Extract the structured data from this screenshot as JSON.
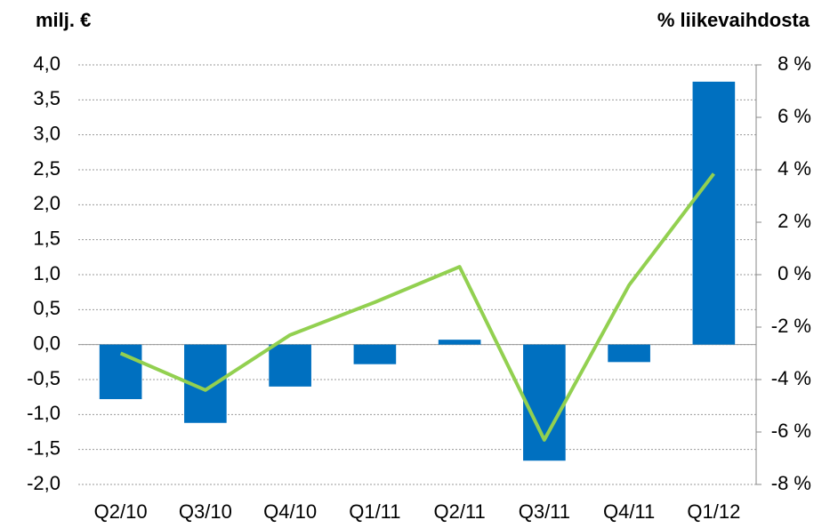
{
  "chart_data": {
    "type": "bar-line",
    "y_label": "milj. €",
    "y2_label": "% liikevaihdosta",
    "categories": [
      "Q2/10",
      "Q3/10",
      "Q4/10",
      "Q1/11",
      "Q2/11",
      "Q3/11",
      "Q4/11",
      "Q1/12"
    ],
    "series": [
      {
        "type": "bar",
        "color": "#0070c0",
        "values": [
          -0.78,
          -1.12,
          -0.6,
          -0.28,
          0.07,
          -1.66,
          -0.25,
          3.76
        ]
      },
      {
        "type": "line",
        "axis": "y2",
        "color": "#92d050",
        "values": [
          -3.0,
          -4.4,
          -2.3,
          -1.05,
          0.3,
          -6.3,
          -0.4,
          3.85
        ]
      }
    ],
    "ylim": [
      -2.0,
      4.0
    ],
    "yticks": [
      {
        "value": -2.0,
        "label": "-2,0"
      },
      {
        "value": -1.5,
        "label": "-1,5"
      },
      {
        "value": -1.0,
        "label": "-1,0"
      },
      {
        "value": -0.5,
        "label": "-0,5"
      },
      {
        "value": 0.0,
        "label": "0,0"
      },
      {
        "value": 0.5,
        "label": "0,5"
      },
      {
        "value": 1.0,
        "label": "1,0"
      },
      {
        "value": 1.5,
        "label": "1,5"
      },
      {
        "value": 2.0,
        "label": "2,0"
      },
      {
        "value": 2.5,
        "label": "2,5"
      },
      {
        "value": 3.0,
        "label": "3,0"
      },
      {
        "value": 3.5,
        "label": "3,5"
      },
      {
        "value": 4.0,
        "label": "4,0"
      }
    ],
    "y2lim": [
      -8,
      8
    ],
    "y2ticks": [
      {
        "value": -8,
        "label": "-8 %"
      },
      {
        "value": -6,
        "label": "-6 %"
      },
      {
        "value": -4,
        "label": "-4 %"
      },
      {
        "value": -2,
        "label": "-2 %"
      },
      {
        "value": 0,
        "label": "0 %"
      },
      {
        "value": 2,
        "label": "2 %"
      },
      {
        "value": 4,
        "label": "4 %"
      },
      {
        "value": 6,
        "label": "6 %"
      },
      {
        "value": 8,
        "label": "8 %"
      }
    ],
    "grid": true
  }
}
